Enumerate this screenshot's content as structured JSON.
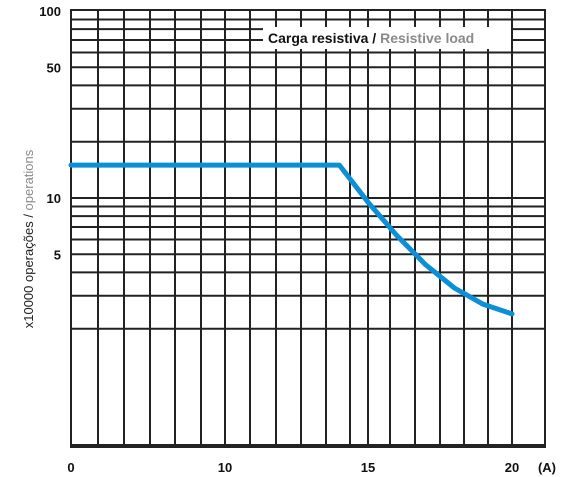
{
  "chart_data": {
    "type": "line",
    "title_primary": "Carga resistiva",
    "title_separator": " / ",
    "title_secondary": "Resistive load",
    "ylabel_primary": "x10000 operações",
    "ylabel_separator": " / ",
    "ylabel_secondary": "operations",
    "xlabel": "",
    "x_unit": "(A)",
    "x_tick_labels": [
      "0",
      "10",
      "15",
      "20"
    ],
    "y_tick_labels": [
      "100",
      "50",
      "10",
      "5"
    ],
    "y_scale": "log",
    "grid": true,
    "legend": "none",
    "line_color": "#0b8fd6",
    "series": [
      {
        "x": [
          0,
          10,
          14,
          15,
          16,
          17,
          18,
          19,
          20
        ],
        "y": [
          15,
          15,
          15,
          9.5,
          6.3,
          4.4,
          3.3,
          2.7,
          2.4
        ]
      }
    ]
  }
}
